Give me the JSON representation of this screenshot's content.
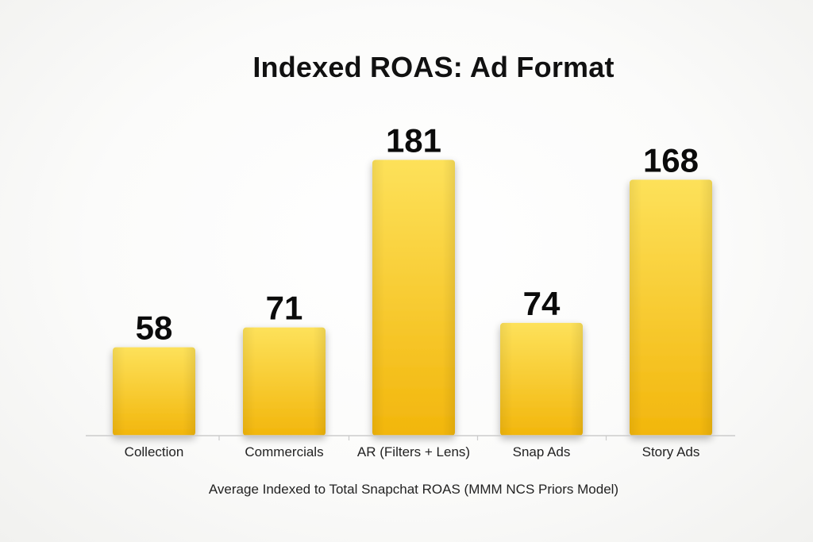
{
  "chart_data": {
    "type": "bar",
    "title": "Indexed ROAS: Ad Format",
    "xlabel": "Average Indexed to Total Snapchat ROAS (MMM NCS Priors Model)",
    "ylabel": "",
    "categories": [
      "Collection",
      "Commercials",
      "AR (Filters + Lens)",
      "Snap Ads",
      "Story Ads"
    ],
    "values": [
      58,
      71,
      181,
      74,
      168
    ],
    "ylim": [
      0,
      200
    ],
    "grid": false,
    "legend": "none",
    "data_labels": true,
    "colors": {
      "bar_top": "#fde15a",
      "bar_bottom": "#f2b60c",
      "axis": "#cccccc"
    }
  }
}
